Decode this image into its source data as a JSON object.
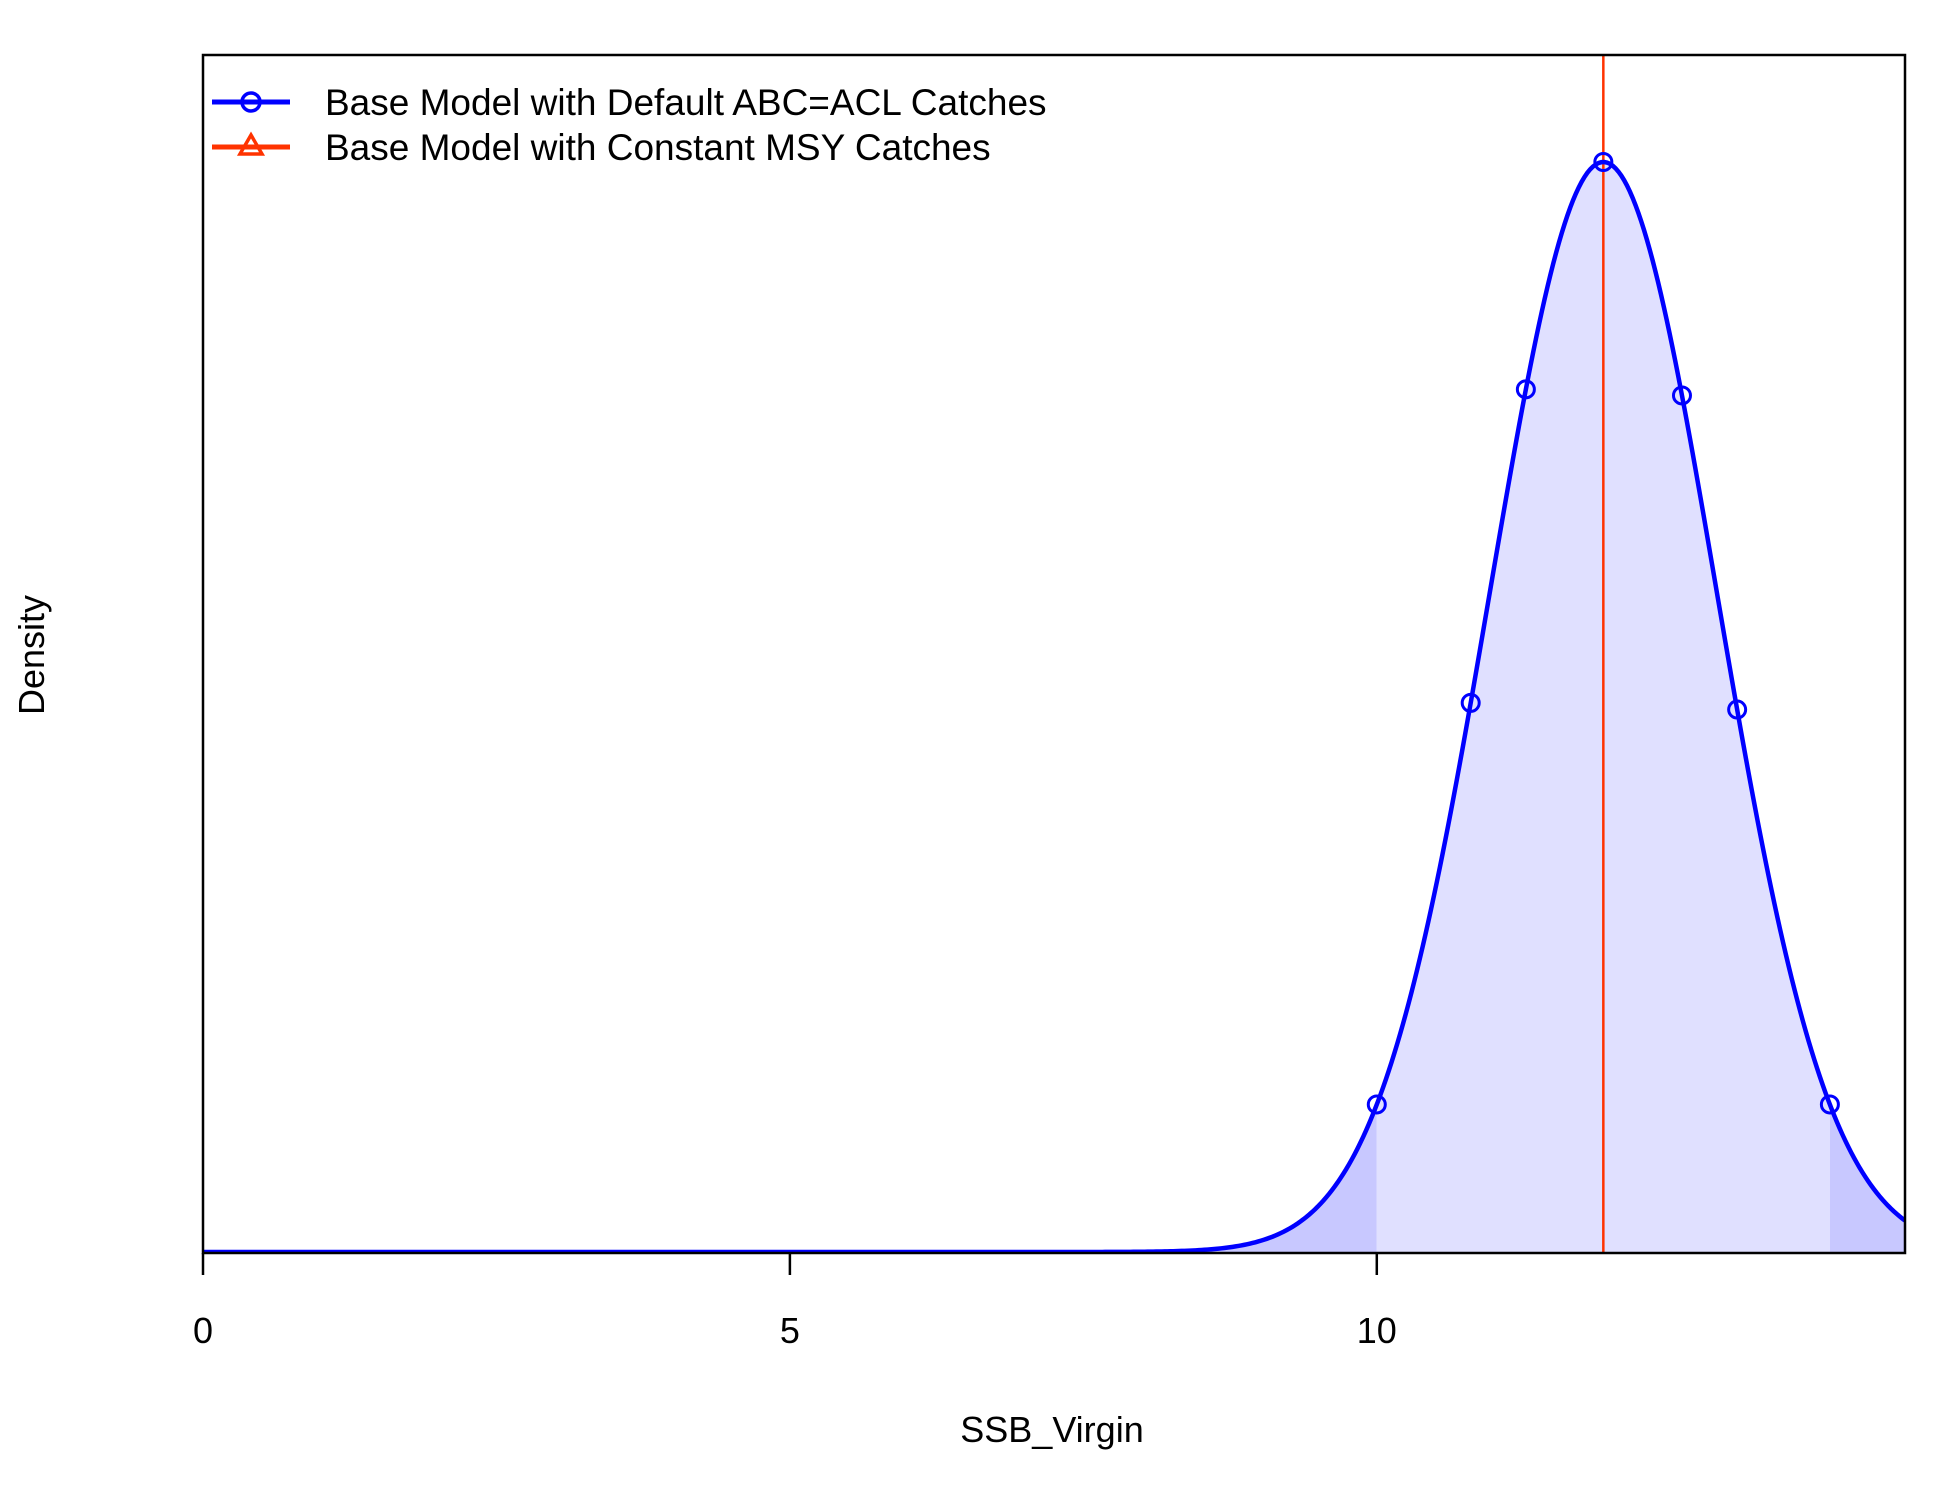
{
  "chart_data": {
    "type": "line",
    "xlabel": "SSB_Virgin",
    "ylabel": "Density",
    "xlim": [
      0,
      14.5
    ],
    "x_ticks": [
      0,
      5,
      10
    ],
    "y_ticks_shown": false,
    "legend_position": "top-left",
    "legend": [
      {
        "label": "Base Model with Default ABC=ACL Catches",
        "color": "#0000ff",
        "marker": "circle"
      },
      {
        "label": "Base Model with Constant MSY Catches",
        "color": "#ff3300",
        "marker": "triangle"
      }
    ],
    "series": [
      {
        "name": "Base Model with Default ABC=ACL Catches",
        "color": "#0000ff",
        "distribution": "normal",
        "mean": 11.93,
        "sd": 0.965,
        "marker_x": [
          10.0,
          10.8,
          11.27,
          11.93,
          12.6,
          13.07,
          13.86
        ],
        "ci_lower": 10.0,
        "ci_upper": 13.86,
        "fill_color": "#e0e0ff",
        "tail_fill_color": "#c8c8ff"
      }
    ],
    "vline": {
      "x": 11.93,
      "color": "#ff3300"
    }
  }
}
